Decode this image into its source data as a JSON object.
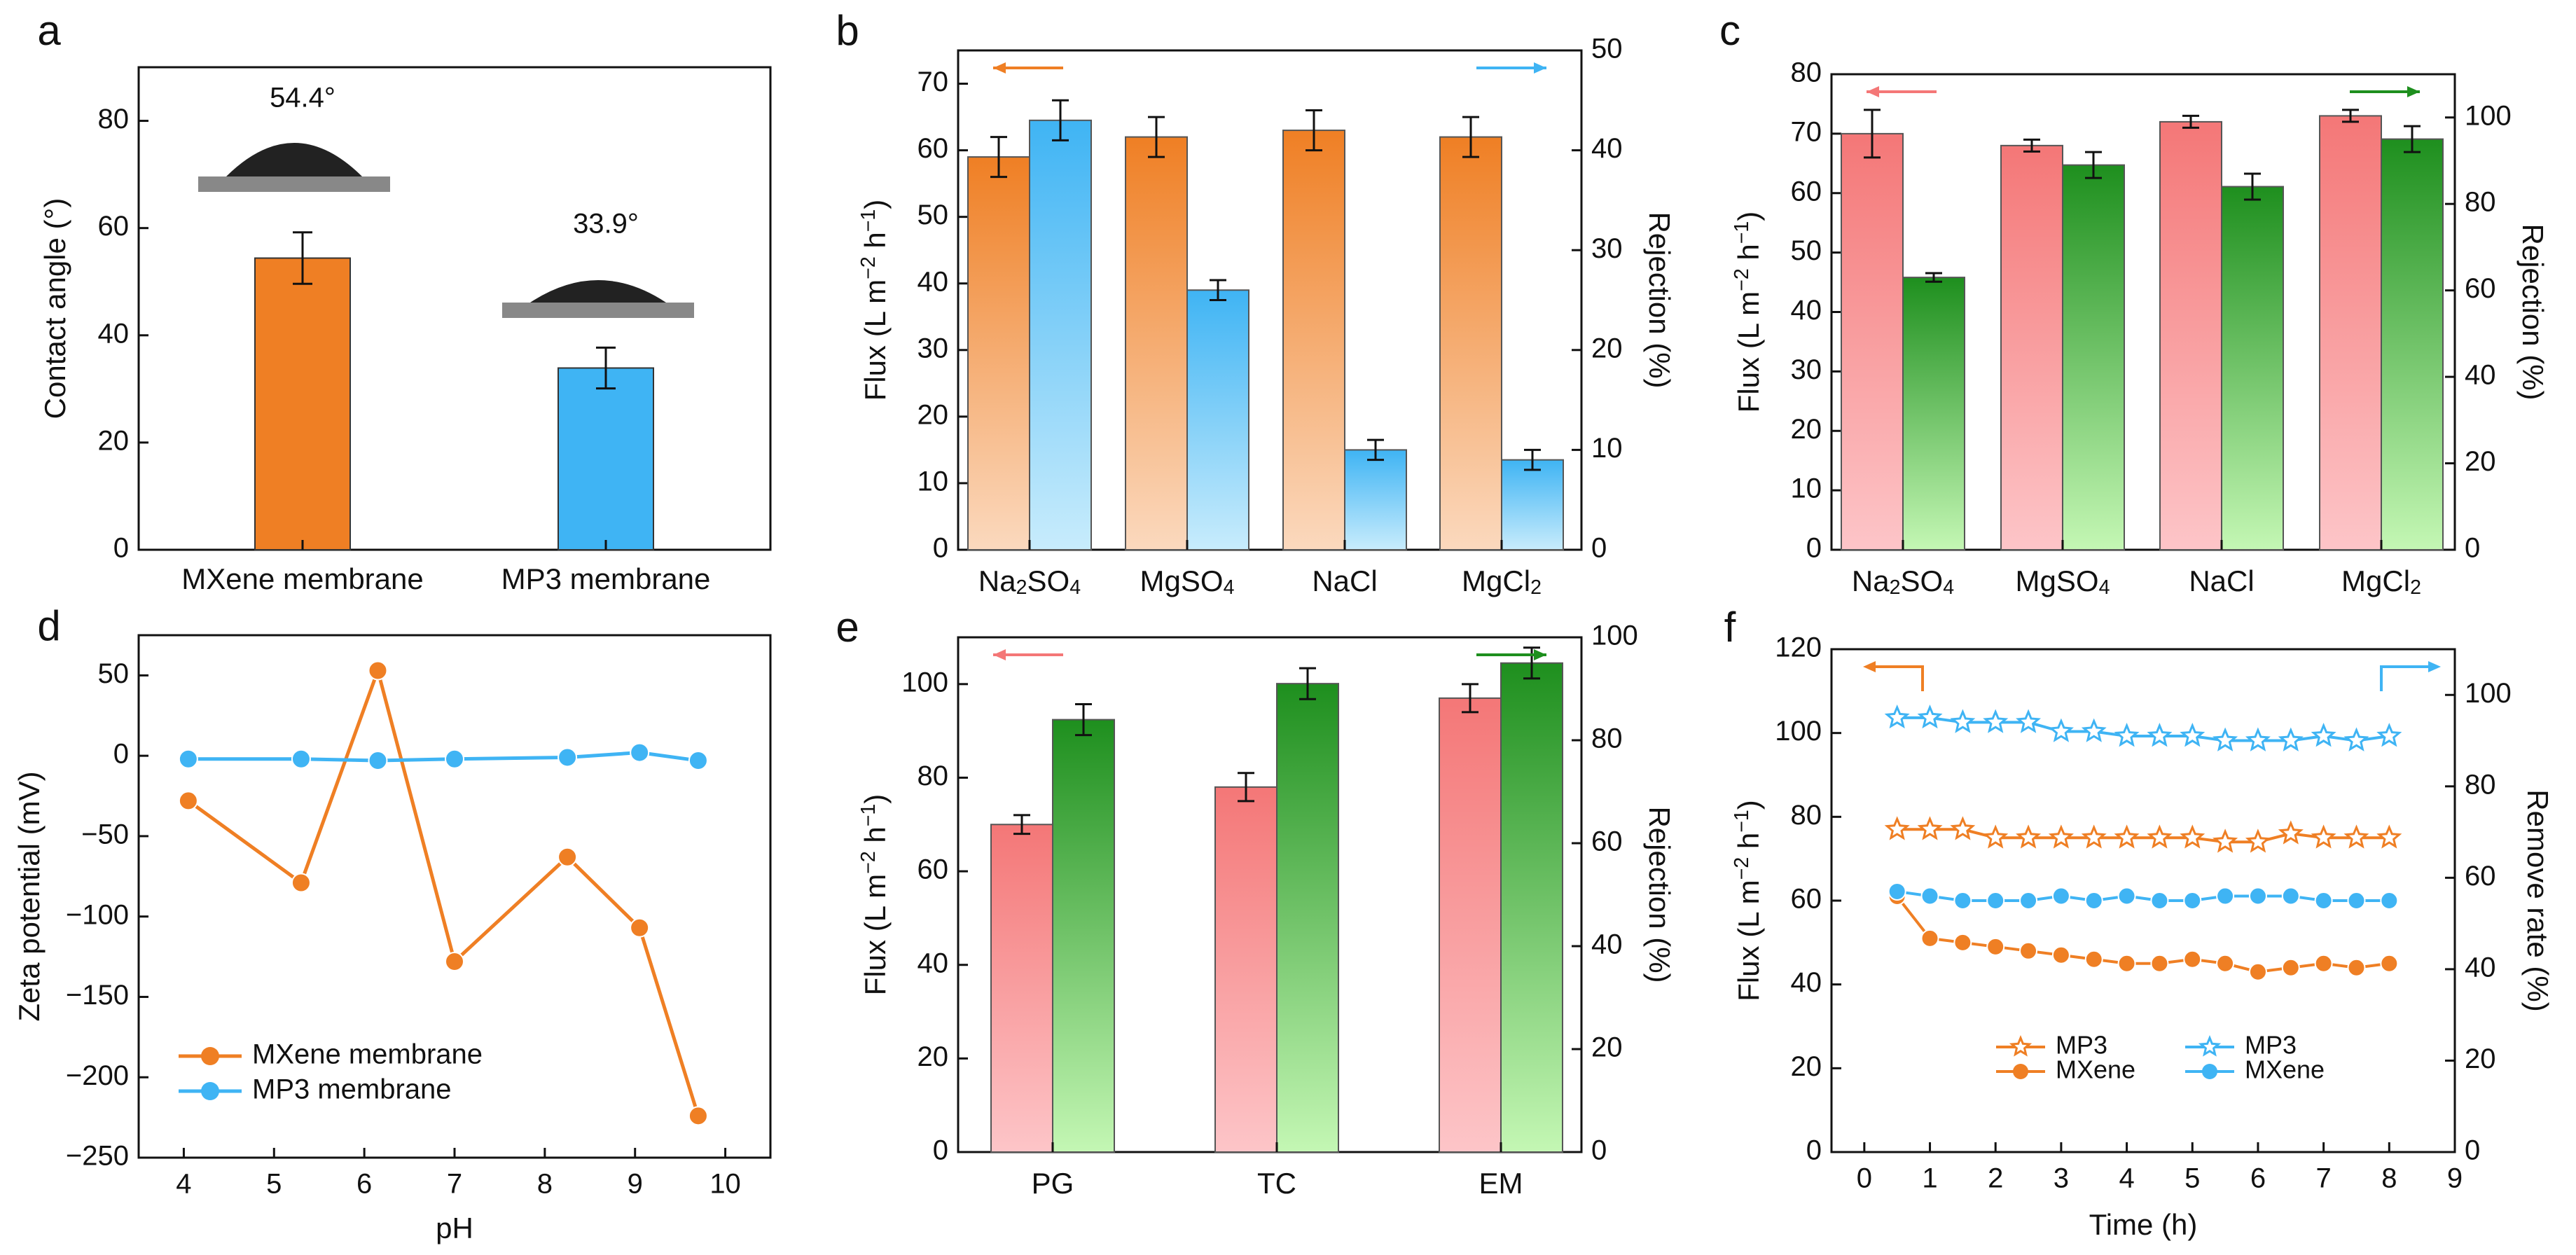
{
  "colors": {
    "orange": "#ef7f24",
    "orange_light": "#fbd9be",
    "blue": "#3fb4f4",
    "blue_light": "#c8ecfc",
    "red": "#f47777",
    "red_light": "#fdc5c8",
    "green": "#1e8f1e",
    "green_light": "#c4f7b4",
    "axis": "#111111",
    "angle_text": "#e8121b"
  },
  "chart_data": [
    {
      "panel": "a",
      "type": "bar",
      "categories": [
        "MXene membrane",
        "MP3 membrane"
      ],
      "values": [
        54.4,
        33.9
      ],
      "errors": [
        4.8,
        3.8
      ],
      "bar_colors": [
        "orange",
        "blue"
      ],
      "annotations": [
        "54.4°",
        "33.9°"
      ],
      "ylabel": "Contact angle (°)",
      "ylim": [
        0,
        90
      ],
      "yticks": [
        0,
        20,
        40,
        60,
        80
      ]
    },
    {
      "panel": "b",
      "type": "bar",
      "categories": [
        "Na2SO4",
        "MgSO4",
        "NaCl",
        "MgCl2"
      ],
      "series": [
        {
          "name": "Flux",
          "axis": "left",
          "values": [
            59,
            62,
            63,
            62
          ],
          "errors": [
            3,
            3,
            3,
            3
          ],
          "colors": [
            "orange",
            "orange_light"
          ]
        },
        {
          "name": "Rejection",
          "axis": "right",
          "values": [
            43,
            26,
            10,
            9
          ],
          "errors": [
            2,
            1,
            1,
            1
          ],
          "colors": [
            "blue",
            "blue_light"
          ]
        }
      ],
      "ylabel": "Flux (L m−2 h−1)",
      "ylabel2": "Rejection (%)",
      "ylim": [
        0,
        75
      ],
      "yticks": [
        0,
        10,
        20,
        30,
        40,
        50,
        60,
        70
      ],
      "ylim2": [
        0,
        50
      ],
      "yticks2": [
        0,
        10,
        20,
        30,
        40,
        50
      ],
      "arrows": {
        "left": "orange",
        "right": "blue"
      }
    },
    {
      "panel": "c",
      "type": "bar",
      "categories": [
        "Na2SO4",
        "MgSO4",
        "NaCl",
        "MgCl2"
      ],
      "series": [
        {
          "name": "Flux",
          "axis": "left",
          "values": [
            70,
            68,
            72,
            73
          ],
          "errors": [
            4,
            1,
            1,
            1
          ],
          "colors": [
            "red",
            "red_light"
          ]
        },
        {
          "name": "Rejection",
          "axis": "right",
          "values": [
            63,
            89,
            84,
            95
          ],
          "errors": [
            1,
            3,
            3,
            3
          ],
          "colors": [
            "green",
            "green_light"
          ]
        }
      ],
      "ylabel": "Flux (L m−2 h−1)",
      "ylabel2": "Rejection (%)",
      "ylim": [
        0,
        80
      ],
      "yticks": [
        0,
        10,
        20,
        30,
        40,
        50,
        60,
        70,
        80
      ],
      "ylim2": [
        0,
        110
      ],
      "yticks2": [
        0,
        20,
        40,
        60,
        80,
        100
      ],
      "arrows": {
        "left": "red",
        "right": "green"
      }
    },
    {
      "panel": "d",
      "type": "line",
      "xlabel": "pH",
      "ylabel": "Zeta potential (mV)",
      "xlim": [
        3.5,
        10.5
      ],
      "xticks": [
        4,
        5,
        6,
        7,
        8,
        9,
        10
      ],
      "ylim": [
        -250,
        75
      ],
      "yticks": [
        -250,
        -200,
        -150,
        -100,
        -50,
        0,
        50
      ],
      "series": [
        {
          "name": "MXene membrane",
          "color": "orange",
          "x": [
            4.05,
            5.3,
            6.15,
            7.0,
            8.25,
            9.05,
            9.7
          ],
          "y": [
            -28,
            -79,
            53,
            -128,
            -63,
            -107,
            -224
          ]
        },
        {
          "name": "MP3 membrane",
          "color": "blue",
          "x": [
            4.05,
            5.3,
            6.15,
            7.0,
            8.25,
            9.05,
            9.7
          ],
          "y": [
            -2,
            -2,
            -3,
            -2,
            -1,
            2,
            -3
          ]
        }
      ],
      "legend": "bottom-left"
    },
    {
      "panel": "e",
      "type": "bar",
      "categories": [
        "PG",
        "TC",
        "EM"
      ],
      "series": [
        {
          "name": "Flux",
          "axis": "left",
          "values": [
            70,
            78,
            97
          ],
          "errors": [
            2,
            3,
            3
          ],
          "colors": [
            "red",
            "red_light"
          ]
        },
        {
          "name": "Rejection",
          "axis": "right",
          "values": [
            84,
            91,
            95
          ],
          "errors": [
            3,
            3,
            3
          ],
          "colors": [
            "green",
            "green_light"
          ]
        }
      ],
      "ylabel": "Flux (L m−2 h−1)",
      "ylabel2": "Rejection (%)",
      "ylim": [
        0,
        110
      ],
      "yticks": [
        0,
        20,
        40,
        60,
        80,
        100
      ],
      "ylim2": [
        0,
        100
      ],
      "yticks2": [
        0,
        20,
        40,
        60,
        80,
        100
      ],
      "arrows": {
        "left": "red",
        "right": "green"
      }
    },
    {
      "panel": "f",
      "type": "line",
      "xlabel": "Time (h)",
      "ylabel": "Flux (L m−2 h−1)",
      "ylabel2": "Remove rate (%)",
      "xlim": [
        -0.5,
        9
      ],
      "xticks": [
        0,
        1,
        2,
        3,
        4,
        5,
        6,
        7,
        8,
        9
      ],
      "ylim": [
        0,
        120
      ],
      "yticks": [
        0,
        20,
        40,
        60,
        80,
        100,
        120
      ],
      "ylim2": [
        0,
        110
      ],
      "yticks2": [
        0,
        20,
        40,
        60,
        80,
        100
      ],
      "x": [
        0.5,
        1,
        1.5,
        2,
        2.5,
        3,
        3.5,
        4,
        4.5,
        5,
        5.5,
        6,
        6.5,
        7,
        7.5,
        8
      ],
      "series": [
        {
          "name": "MP3",
          "axis": "left",
          "marker": "star",
          "color": "orange",
          "y": [
            77,
            77,
            77,
            75,
            75,
            75,
            75,
            75,
            75,
            75,
            74,
            74,
            76,
            75,
            75,
            75
          ]
        },
        {
          "name": "MXene",
          "axis": "left",
          "marker": "circle",
          "color": "orange",
          "y": [
            61,
            51,
            50,
            49,
            48,
            47,
            46,
            45,
            45,
            46,
            45,
            43,
            44,
            45,
            44,
            45
          ]
        },
        {
          "name": "MP3",
          "axis": "right",
          "marker": "star",
          "color": "blue",
          "y": [
            95,
            95,
            94,
            94,
            94,
            92,
            92,
            91,
            91,
            91,
            90,
            90,
            90,
            91,
            90,
            91
          ]
        },
        {
          "name": "MXene",
          "axis": "right",
          "marker": "circle",
          "color": "blue",
          "y": [
            57,
            56,
            55,
            55,
            55,
            56,
            55,
            56,
            55,
            55,
            56,
            56,
            56,
            55,
            55,
            55
          ]
        }
      ],
      "legend": "bottom-center",
      "arrows": {
        "left": "orange",
        "right": "blue"
      }
    }
  ]
}
